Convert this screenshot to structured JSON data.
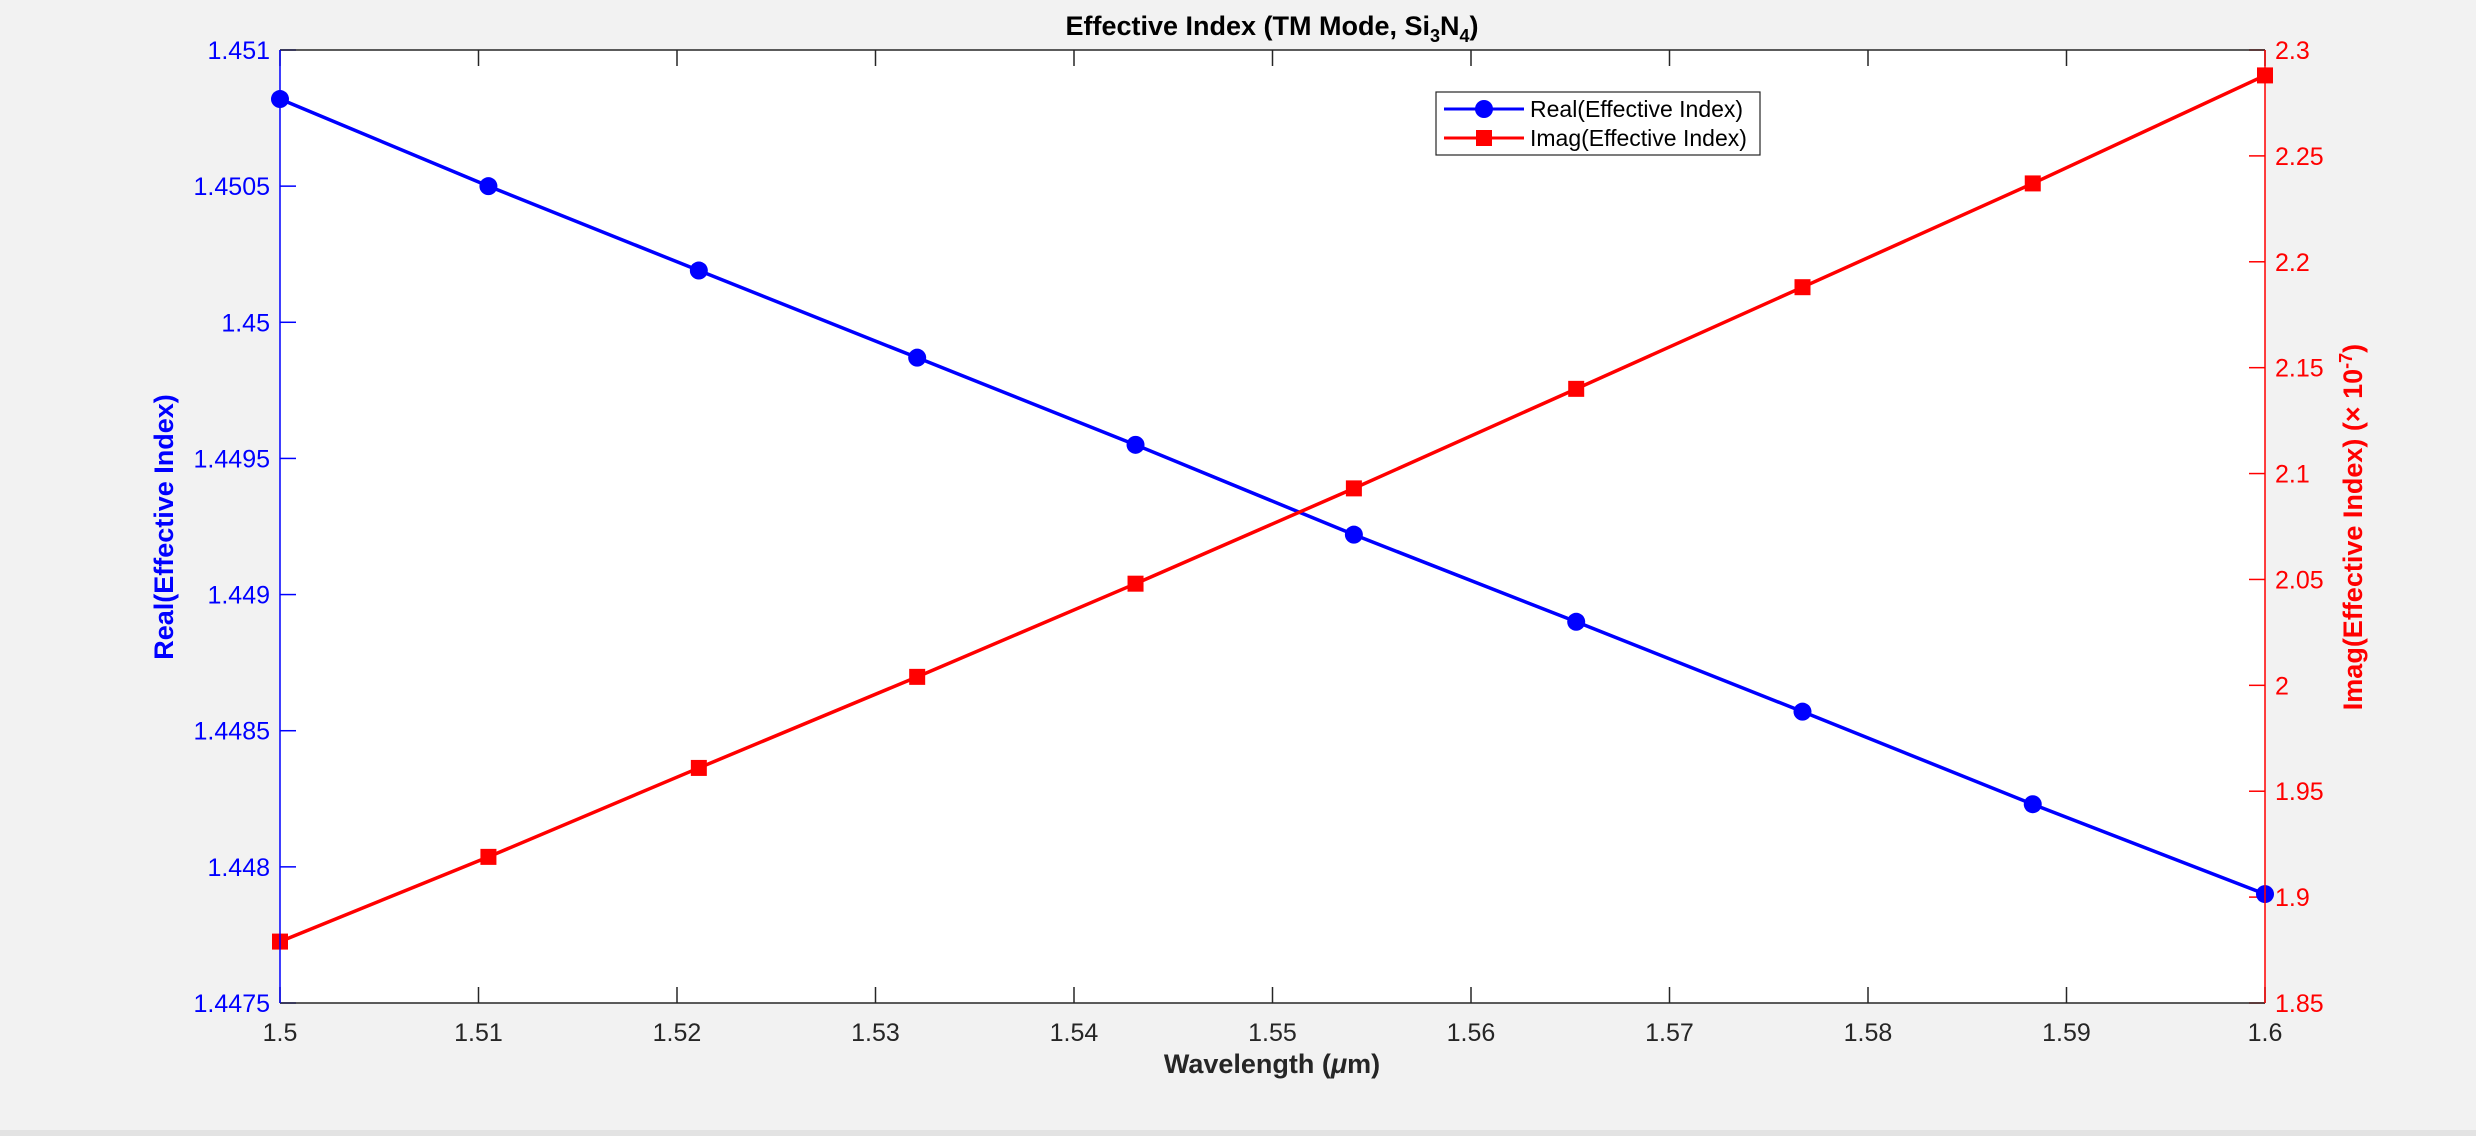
{
  "chart_data": {
    "type": "line",
    "title": {
      "main": "Effective Index (TM Mode, Si",
      "sub1": "3",
      "mid": "N",
      "sub2": "4",
      "end": ")"
    },
    "xlabel": {
      "main": "Wavelength (",
      "mu": "μ",
      "end": "m)"
    },
    "ylabel_left": "Real(Effective Index)",
    "ylabel_right": {
      "main": "Imag(Effective Index) (× 10",
      "sup": "-7",
      "end": ")"
    },
    "xlim": [
      1.5,
      1.6
    ],
    "ylim_left": [
      1.4475,
      1.451
    ],
    "ylim_right": [
      1.85,
      2.3
    ],
    "x_ticks": [
      "1.5",
      "1.51",
      "1.52",
      "1.53",
      "1.54",
      "1.55",
      "1.56",
      "1.57",
      "1.58",
      "1.59",
      "1.6"
    ],
    "y_left_ticks": [
      "1.4475",
      "1.448",
      "1.4485",
      "1.449",
      "1.4495",
      "1.45",
      "1.4505",
      "1.451"
    ],
    "y_right_ticks": [
      "1.85",
      "1.9",
      "1.95",
      "2",
      "2.05",
      "2.1",
      "2.15",
      "2.2",
      "2.25",
      "2.3"
    ],
    "x": [
      1.5,
      1.5105,
      1.5211,
      1.5321,
      1.5431,
      1.5541,
      1.5653,
      1.5767,
      1.5883,
      1.6
    ],
    "series": [
      {
        "name": "Real(Effective Index)",
        "axis": "left",
        "color": "#0000ff",
        "marker": "circle",
        "values": [
          1.45082,
          1.4505,
          1.45019,
          1.44987,
          1.44955,
          1.44922,
          1.4489,
          1.44857,
          1.44823,
          1.4479
        ]
      },
      {
        "name": "Imag(Effective Index)",
        "axis": "right",
        "color": "#ff0000",
        "marker": "square",
        "values": [
          1.879,
          1.919,
          1.961,
          2.004,
          2.048,
          2.093,
          2.14,
          2.188,
          2.237,
          2.288
        ]
      }
    ],
    "legend_position": "top-right",
    "grid": false
  },
  "colors": {
    "left_axis": "#0000ff",
    "right_axis": "#ff0000",
    "axes": "#262626",
    "background": "#f2f2f2",
    "plot_bg": "#ffffff"
  }
}
